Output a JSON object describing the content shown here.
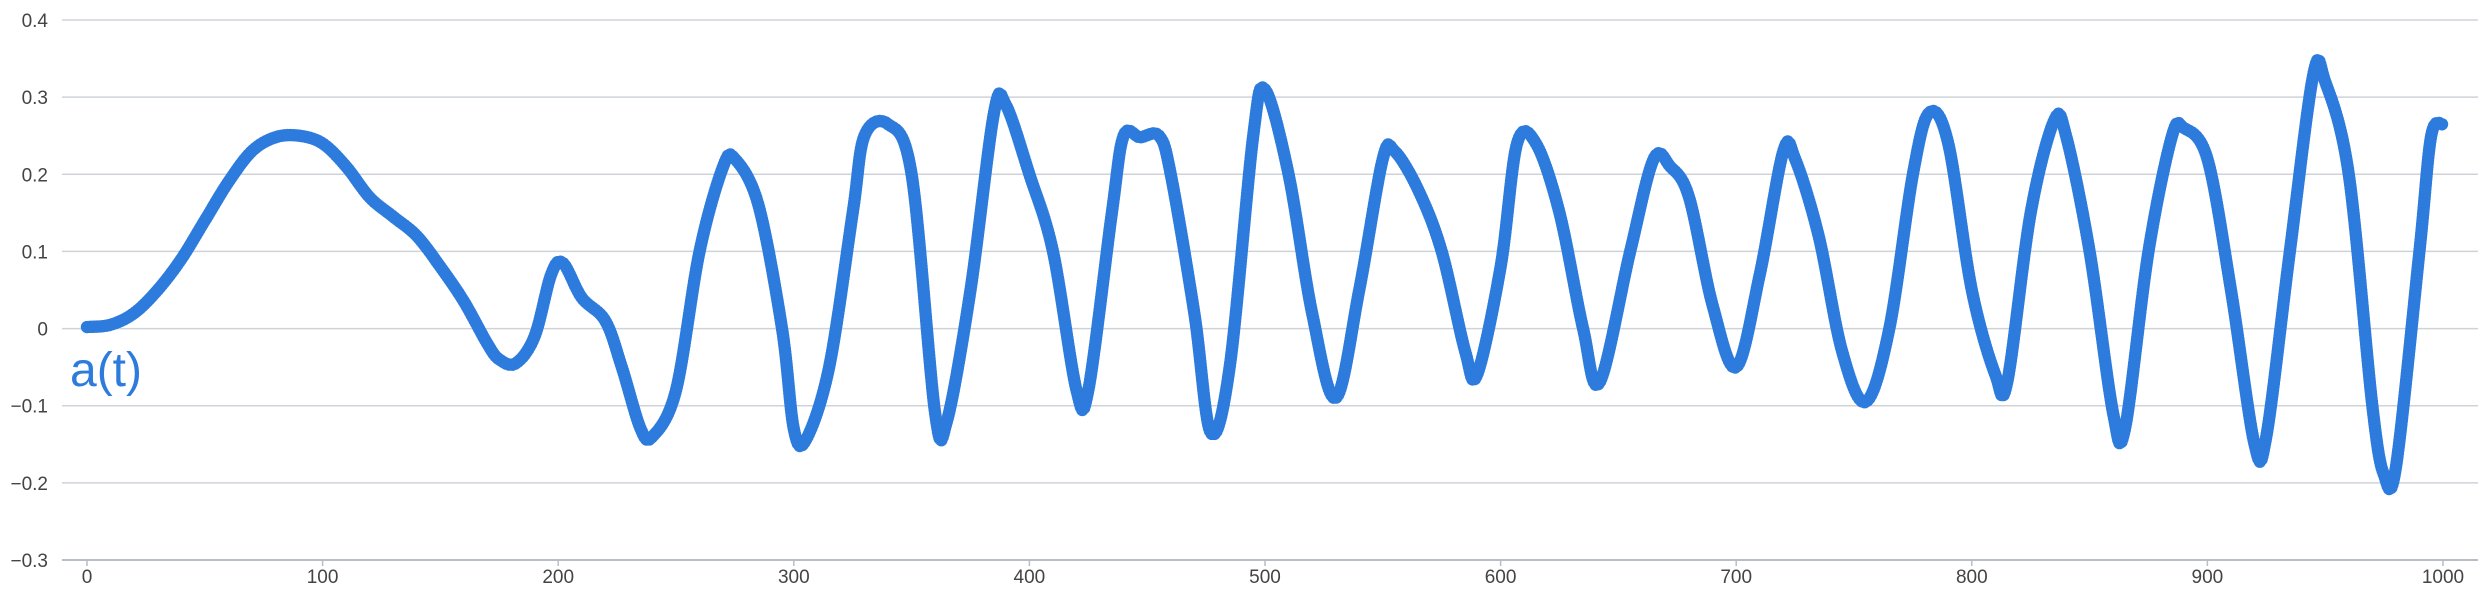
{
  "chart_data": {
    "type": "scatter",
    "series_label": "a(t)",
    "xlim": [
      0,
      1000
    ],
    "ylim": [
      -0.3,
      0.4
    ],
    "x_ticks": [
      0,
      100,
      200,
      300,
      400,
      500,
      600,
      700,
      800,
      900,
      1000
    ],
    "x_tick_labels": [
      "0",
      "100",
      "200",
      "300",
      "400",
      "500",
      "600",
      "700",
      "800",
      "900",
      "1000"
    ],
    "y_ticks": [
      -0.3,
      -0.2,
      -0.1,
      0,
      0.1,
      0.2,
      0.3,
      0.4
    ],
    "y_tick_labels": [
      "−0.3",
      "−0.2",
      "−0.1",
      "0",
      "0.1",
      "0.2",
      "0.3",
      "0.4"
    ],
    "grid": "horizontal",
    "colors": {
      "series": "#2d7bdc",
      "grid": "#cfd3d8",
      "axis": "#b8bec6",
      "tick_text": "#444444"
    },
    "series": [
      {
        "name": "a(t)",
        "points": [
          [
            0,
            0.002
          ],
          [
            10,
            0.005
          ],
          [
            20,
            0.02
          ],
          [
            30,
            0.05
          ],
          [
            40,
            0.09
          ],
          [
            50,
            0.14
          ],
          [
            60,
            0.19
          ],
          [
            70,
            0.23
          ],
          [
            80,
            0.248
          ],
          [
            90,
            0.25
          ],
          [
            100,
            0.24
          ],
          [
            110,
            0.21
          ],
          [
            120,
            0.17
          ],
          [
            130,
            0.145
          ],
          [
            140,
            0.12
          ],
          [
            150,
            0.08
          ],
          [
            160,
            0.035
          ],
          [
            170,
            -0.02
          ],
          [
            175,
            -0.04
          ],
          [
            182,
            -0.045
          ],
          [
            190,
            -0.01
          ],
          [
            197,
            0.07
          ],
          [
            202,
            0.085
          ],
          [
            210,
            0.04
          ],
          [
            220,
            0.01
          ],
          [
            227,
            -0.05
          ],
          [
            235,
            -0.13
          ],
          [
            240,
            -0.14
          ],
          [
            250,
            -0.08
          ],
          [
            260,
            0.1
          ],
          [
            270,
            0.21
          ],
          [
            275,
            0.22
          ],
          [
            285,
            0.16
          ],
          [
            295,
            0.0
          ],
          [
            300,
            -0.13
          ],
          [
            305,
            -0.145
          ],
          [
            315,
            -0.05
          ],
          [
            325,
            0.15
          ],
          [
            330,
            0.25
          ],
          [
            340,
            0.265
          ],
          [
            350,
            0.2
          ],
          [
            360,
            -0.11
          ],
          [
            365,
            -0.12
          ],
          [
            375,
            0.05
          ],
          [
            385,
            0.28
          ],
          [
            390,
            0.29
          ],
          [
            400,
            0.2
          ],
          [
            410,
            0.1
          ],
          [
            420,
            -0.08
          ],
          [
            425,
            -0.08
          ],
          [
            435,
            0.15
          ],
          [
            440,
            0.25
          ],
          [
            447,
            0.248
          ],
          [
            455,
            0.25
          ],
          [
            460,
            0.2
          ],
          [
            470,
            0.02
          ],
          [
            477,
            -0.135
          ],
          [
            485,
            -0.05
          ],
          [
            495,
            0.25
          ],
          [
            500,
            0.31
          ],
          [
            510,
            0.2
          ],
          [
            520,
            0.02
          ],
          [
            530,
            -0.09
          ],
          [
            540,
            0.05
          ],
          [
            550,
            0.22
          ],
          [
            555,
            0.23
          ],
          [
            565,
            0.18
          ],
          [
            575,
            0.1
          ],
          [
            585,
            -0.03
          ],
          [
            590,
            -0.06
          ],
          [
            600,
            0.08
          ],
          [
            607,
            0.24
          ],
          [
            615,
            0.24
          ],
          [
            625,
            0.15
          ],
          [
            635,
            0.0
          ],
          [
            642,
            -0.07
          ],
          [
            655,
            0.1
          ],
          [
            665,
            0.22
          ],
          [
            672,
            0.21
          ],
          [
            680,
            0.17
          ],
          [
            690,
            0.03
          ],
          [
            700,
            -0.05
          ],
          [
            710,
            0.07
          ],
          [
            720,
            0.23
          ],
          [
            725,
            0.22
          ],
          [
            735,
            0.12
          ],
          [
            745,
            -0.03
          ],
          [
            755,
            -0.095
          ],
          [
            765,
            0.0
          ],
          [
            775,
            0.2
          ],
          [
            782,
            0.28
          ],
          [
            790,
            0.24
          ],
          [
            800,
            0.05
          ],
          [
            810,
            -0.06
          ],
          [
            815,
            -0.07
          ],
          [
            825,
            0.15
          ],
          [
            835,
            0.27
          ],
          [
            840,
            0.25
          ],
          [
            850,
            0.1
          ],
          [
            860,
            -0.11
          ],
          [
            865,
            -0.13
          ],
          [
            875,
            0.1
          ],
          [
            885,
            0.25
          ],
          [
            890,
            0.26
          ],
          [
            900,
            0.22
          ],
          [
            910,
            0.05
          ],
          [
            920,
            -0.15
          ],
          [
            925,
            -0.14
          ],
          [
            935,
            0.1
          ],
          [
            945,
            0.33
          ],
          [
            950,
            0.32
          ],
          [
            960,
            0.2
          ],
          [
            970,
            -0.1
          ],
          [
            975,
            -0.19
          ],
          [
            980,
            -0.18
          ],
          [
            990,
            0.1
          ],
          [
            995,
            0.25
          ],
          [
            1000,
            0.265
          ]
        ]
      }
    ]
  }
}
